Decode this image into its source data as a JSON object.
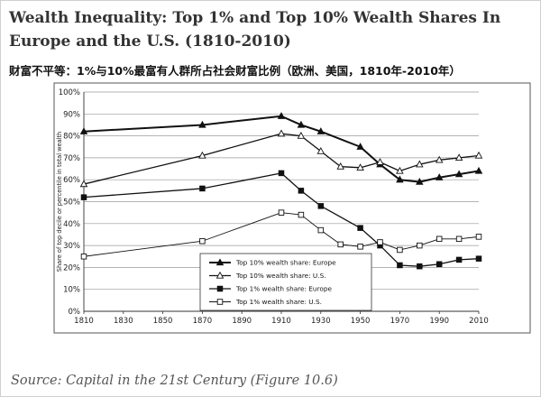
{
  "header": {
    "title": "Wealth Inequality: Top 1% and Top 10% Wealth Shares In Europe and the U.S. (1810-2010)",
    "subtitle": "财富不平等：1%与10%最富有人群所占社会财富比例（欧洲、美国，1810年-2010年）"
  },
  "footer": {
    "source": "Source: Capital in the 21st Century (Figure 10.6)"
  },
  "chart_data": {
    "type": "line",
    "title": "Wealth Inequality: Top 1% and Top 10% Wealth Shares In Europe and the U.S. (1810-2010)",
    "xlabel": "",
    "ylabel": "Share of top decile or percentile in total wealth",
    "xlim": [
      1810,
      2010
    ],
    "ylim": [
      0,
      100
    ],
    "x_ticks": [
      1810,
      1830,
      1850,
      1870,
      1890,
      1910,
      1930,
      1950,
      1970,
      1990,
      2010
    ],
    "y_ticks": [
      "0%",
      "10%",
      "20%",
      "30%",
      "40%",
      "50%",
      "60%",
      "70%",
      "80%",
      "90%",
      "100%"
    ],
    "y_tick_values": [
      0,
      10,
      20,
      30,
      40,
      50,
      60,
      70,
      80,
      90,
      100
    ],
    "grid": true,
    "legend_position": "bottom-center",
    "series": [
      {
        "name": "Top 10% wealth share: Europe",
        "marker": "filled-triangle",
        "x": [
          1810,
          1870,
          1910,
          1920,
          1930,
          1950,
          1960,
          1970,
          1980,
          1990,
          2000,
          2010
        ],
        "values": [
          82,
          85,
          89,
          85,
          82,
          75,
          67,
          60,
          59,
          61,
          62.5,
          64
        ]
      },
      {
        "name": "Top 10% wealth share: U.S.",
        "marker": "open-triangle",
        "x": [
          1810,
          1870,
          1910,
          1920,
          1930,
          1940,
          1950,
          1960,
          1970,
          1980,
          1990,
          2000,
          2010
        ],
        "values": [
          58,
          71,
          81,
          80,
          73,
          66,
          65.5,
          68,
          64,
          67,
          69,
          70,
          71
        ]
      },
      {
        "name": "Top 1% wealth share: Europe",
        "marker": "filled-square",
        "x": [
          1810,
          1870,
          1910,
          1920,
          1930,
          1950,
          1960,
          1970,
          1980,
          1990,
          2000,
          2010
        ],
        "values": [
          52,
          56,
          63,
          55,
          48,
          38,
          30,
          21,
          20.5,
          21.5,
          23.5,
          24
        ]
      },
      {
        "name": "Top 1% wealth share: U.S.",
        "marker": "open-square",
        "x": [
          1810,
          1870,
          1910,
          1920,
          1930,
          1940,
          1950,
          1960,
          1970,
          1980,
          1990,
          2000,
          2010
        ],
        "values": [
          25,
          32,
          45,
          44,
          37,
          30.5,
          29.5,
          31.5,
          28,
          30,
          33,
          33,
          34
        ]
      }
    ]
  }
}
